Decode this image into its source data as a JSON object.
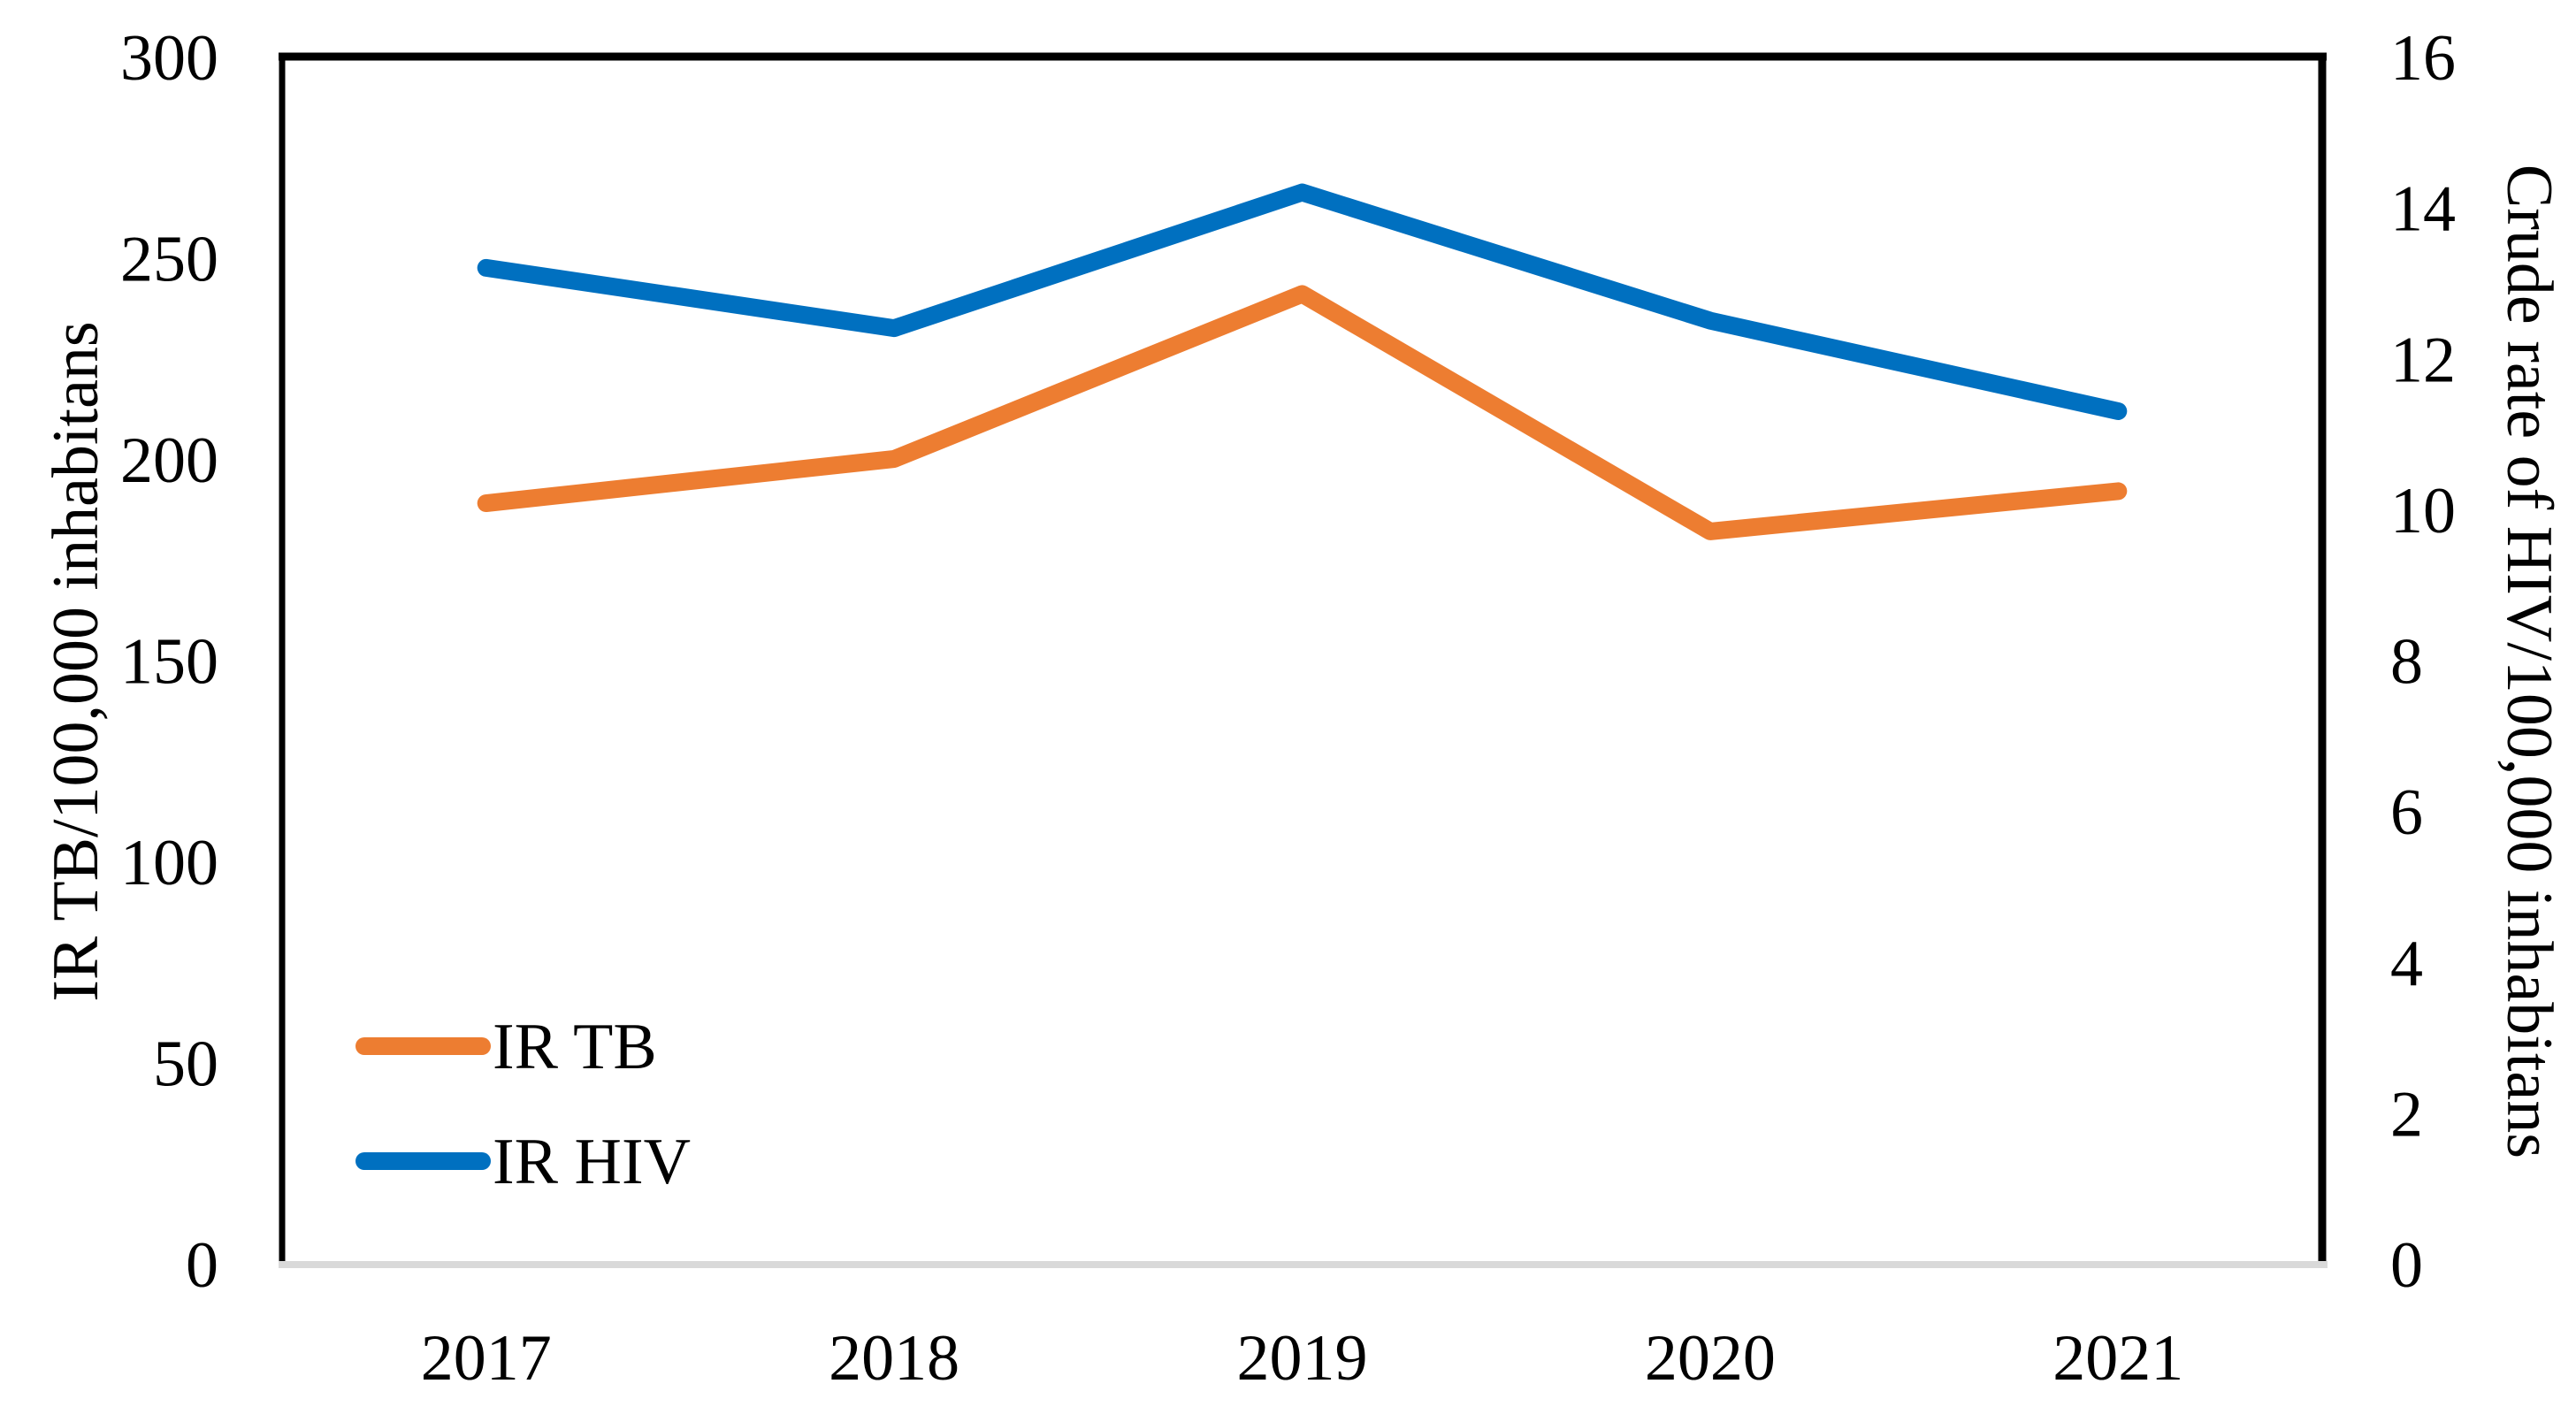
{
  "figure": {
    "background": "#FFFFFF",
    "plot_border_color": "#000000",
    "x_axis_line_color": "#D9D9D9"
  },
  "chart_data": {
    "type": "line",
    "title": "",
    "xlabel": "",
    "categories": [
      "2017",
      "2018",
      "2019",
      "2020",
      "2021"
    ],
    "series": [
      {
        "name": "IR TB",
        "axis": "left",
        "color": "#ED7D31",
        "values": [
          189,
          200,
          241,
          182,
          192
        ]
      },
      {
        "name": "IR HIV",
        "axis": "right",
        "color": "#0070C0",
        "values": [
          13.2,
          12.4,
          14.2,
          12.5,
          11.3
        ]
      }
    ],
    "left_ylabel": "IR TB/100,000 inhabitans",
    "right_ylabel": "Crude rate of HIV/100,000 inhabitans",
    "left_ylim": [
      0,
      300
    ],
    "right_ylim": [
      0,
      16
    ],
    "left_ticks": [
      0,
      50,
      100,
      150,
      200,
      250,
      300
    ],
    "right_ticks": [
      0,
      2,
      4,
      6,
      8,
      10,
      12,
      14,
      16
    ],
    "grid": false,
    "legend_position": "inside-bottom-left",
    "legend": [
      "IR TB",
      "IR HIV"
    ]
  }
}
